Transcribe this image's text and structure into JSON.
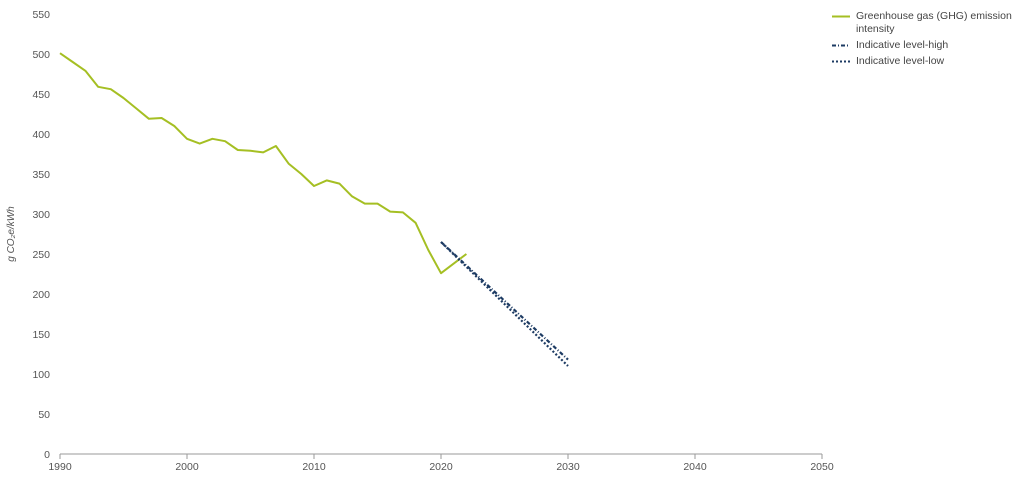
{
  "chart_data": {
    "type": "line",
    "ylabel": "g CO₂e/kWh",
    "xlim": [
      1990,
      2050
    ],
    "ylim": [
      0,
      550
    ],
    "x_ticks": [
      1990,
      2000,
      2010,
      2020,
      2030,
      2040,
      2050
    ],
    "y_ticks": [
      0,
      50,
      100,
      150,
      200,
      250,
      300,
      350,
      400,
      450,
      500,
      550
    ],
    "grid": false,
    "legend_position": "top-right",
    "series": [
      {
        "name": "Greenhouse gas (GHG) emission intensity",
        "color": "#a5bf23",
        "style": "solid",
        "x": [
          1990,
          1991,
          1992,
          1993,
          1994,
          1995,
          1996,
          1997,
          1998,
          1999,
          2000,
          2001,
          2002,
          2003,
          2004,
          2005,
          2006,
          2007,
          2008,
          2009,
          2010,
          2011,
          2012,
          2013,
          2014,
          2015,
          2016,
          2017,
          2018,
          2019,
          2020,
          2021,
          2022
        ],
        "y": [
          501,
          490,
          479,
          459,
          456,
          445,
          432,
          419,
          420,
          410,
          394,
          388,
          394,
          391,
          380,
          379,
          377,
          385,
          363,
          350,
          335,
          342,
          338,
          322,
          313,
          313,
          303,
          302,
          289,
          255,
          226,
          238,
          250
        ]
      },
      {
        "name": "Indicative level-high",
        "color": "#1d3b63",
        "style": "dash-dot",
        "x": [
          2020,
          2030
        ],
        "y": [
          265,
          118
        ]
      },
      {
        "name": "Indicative level-low",
        "color": "#1d3b63",
        "style": "dash-dot",
        "x": [
          2020,
          2030
        ],
        "y": [
          265,
          110
        ]
      }
    ]
  },
  "legend": {
    "items": [
      {
        "label": "Greenhouse gas (GHG) emission intensity",
        "color": "#a5bf23",
        "style": "solid"
      },
      {
        "label": "Indicative level-high",
        "color": "#1d3b63",
        "style": "dash-dot"
      },
      {
        "label": "Indicative level-low",
        "color": "#1d3b63",
        "style": "dash-dot"
      }
    ]
  }
}
